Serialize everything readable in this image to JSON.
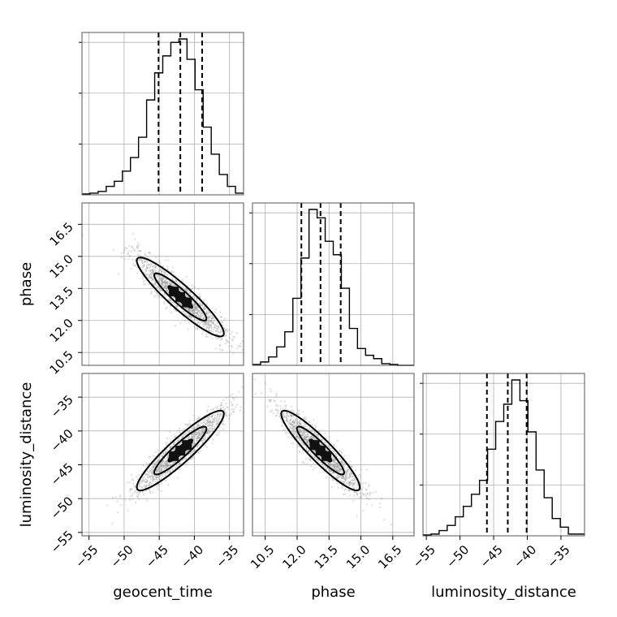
{
  "chart_data": {
    "type": "corner",
    "parameters": [
      {
        "name": "geocent_time",
        "label": "geocent_time",
        "range": [
          -56,
          -33
        ],
        "ticks": [
          -55,
          -50,
          -45,
          -40,
          -35
        ],
        "tick_labels": [
          "−55",
          "−50",
          "−45",
          "−40",
          "−35"
        ],
        "quantiles": [
          -45.1,
          -42.0,
          -38.9
        ],
        "hist_edges": [
          -56,
          -54.85,
          -53.7,
          -52.55,
          -51.4,
          -50.25,
          -49.1,
          -47.95,
          -46.8,
          -45.65,
          -44.5,
          -43.35,
          -42.2,
          -41.05,
          -39.9,
          -38.75,
          -37.6,
          -36.45,
          -35.3,
          -34.15,
          -33
        ],
        "hist_counts": [
          0.005,
          0.01,
          0.02,
          0.05,
          0.08,
          0.14,
          0.22,
          0.34,
          0.56,
          0.72,
          0.82,
          0.9,
          0.92,
          0.8,
          0.62,
          0.4,
          0.24,
          0.12,
          0.05,
          0.01
        ]
      },
      {
        "name": "phase",
        "label": "phase",
        "range": [
          9.9,
          17.5
        ],
        "ticks": [
          10.5,
          12.0,
          13.5,
          15.0,
          16.5
        ],
        "tick_labels": [
          "10.5",
          "12.0",
          "13.5",
          "15.0",
          "16.5"
        ],
        "quantiles": [
          12.2,
          13.1,
          14.05
        ],
        "hist_edges": [
          9.9,
          10.28,
          10.66,
          11.04,
          11.42,
          11.8,
          12.18,
          12.56,
          12.94,
          13.32,
          13.7,
          14.08,
          14.46,
          14.84,
          15.22,
          15.6,
          15.98,
          16.36,
          16.74,
          17.12,
          17.5
        ],
        "hist_counts": [
          0.005,
          0.02,
          0.05,
          0.11,
          0.2,
          0.4,
          0.64,
          0.93,
          0.88,
          0.74,
          0.66,
          0.46,
          0.22,
          0.1,
          0.06,
          0.04,
          0.01,
          0.005,
          0,
          0
        ]
      },
      {
        "name": "luminosity_distance",
        "label": "luminosity_distance",
        "range": [
          -55.5,
          -31.5
        ],
        "ticks": [
          -55,
          -50,
          -45,
          -40,
          -35
        ],
        "tick_labels": [
          "−55",
          "−50",
          "−45",
          "−40",
          "−35"
        ],
        "quantiles": [
          -46.0,
          -42.9,
          -40.1
        ],
        "hist_edges": [
          -55.5,
          -54.3,
          -53.1,
          -51.9,
          -50.7,
          -49.5,
          -48.3,
          -47.1,
          -45.9,
          -44.7,
          -43.5,
          -42.3,
          -41.1,
          -39.9,
          -38.7,
          -37.5,
          -36.3,
          -35.1,
          -33.9,
          -32.7,
          -31.5
        ],
        "hist_counts": [
          0.005,
          0.01,
          0.03,
          0.06,
          0.11,
          0.17,
          0.24,
          0.32,
          0.5,
          0.66,
          0.76,
          0.9,
          0.78,
          0.6,
          0.38,
          0.22,
          0.1,
          0.05,
          0.01,
          0.01
        ]
      }
    ],
    "pairs": [
      {
        "x_param": "geocent_time",
        "y_param": "phase",
        "correlation": -0.92
      },
      {
        "x_param": "geocent_time",
        "y_param": "luminosity_distance",
        "correlation": 0.92
      },
      {
        "x_param": "phase",
        "y_param": "luminosity_distance",
        "correlation": -0.92
      }
    ],
    "grid": true
  }
}
